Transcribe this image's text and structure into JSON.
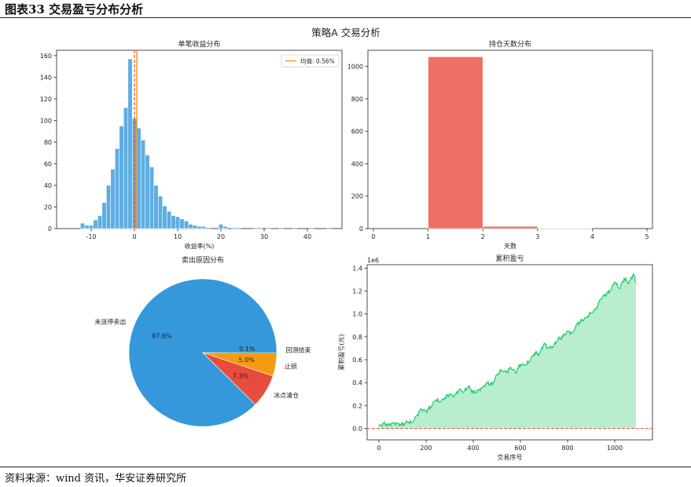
{
  "header": {
    "title": "图表33 交易盈亏分布分析"
  },
  "footer": {
    "source": "资料来源：wind 资讯，华安证券研究所"
  },
  "figure": {
    "suptitle": "策略A 交易分析"
  },
  "chart_data": [
    {
      "type": "bar",
      "title": "单笔收益分布",
      "xlabel": "收益率(%)",
      "ylabel": "",
      "xlim": [
        -18,
        48
      ],
      "ylim": [
        0,
        165
      ],
      "xticks": [
        -10,
        0,
        10,
        20,
        30,
        40
      ],
      "yticks": [
        0,
        20,
        40,
        60,
        80,
        100,
        120,
        140,
        160
      ],
      "bin_width": 1,
      "bins": [
        {
          "x": -12,
          "y": 5
        },
        {
          "x": -11,
          "y": 3
        },
        {
          "x": -10,
          "y": 3
        },
        {
          "x": -9,
          "y": 8
        },
        {
          "x": -8,
          "y": 12
        },
        {
          "x": -7,
          "y": 24
        },
        {
          "x": -6,
          "y": 40
        },
        {
          "x": -5,
          "y": 55
        },
        {
          "x": -4,
          "y": 74
        },
        {
          "x": -3,
          "y": 95
        },
        {
          "x": -2,
          "y": 112
        },
        {
          "x": -1,
          "y": 157
        },
        {
          "x": 0,
          "y": 102
        },
        {
          "x": 1,
          "y": 93
        },
        {
          "x": 2,
          "y": 82
        },
        {
          "x": 3,
          "y": 68
        },
        {
          "x": 4,
          "y": 57
        },
        {
          "x": 5,
          "y": 40
        },
        {
          "x": 6,
          "y": 30
        },
        {
          "x": 7,
          "y": 21
        },
        {
          "x": 8,
          "y": 16
        },
        {
          "x": 9,
          "y": 12
        },
        {
          "x": 10,
          "y": 11
        },
        {
          "x": 11,
          "y": 9
        },
        {
          "x": 12,
          "y": 7
        },
        {
          "x": 13,
          "y": 4
        },
        {
          "x": 14,
          "y": 3
        },
        {
          "x": 15,
          "y": 2
        },
        {
          "x": 16,
          "y": 2
        },
        {
          "x": 17,
          "y": 1
        },
        {
          "x": 20,
          "y": 4
        },
        {
          "x": 21,
          "y": 2
        },
        {
          "x": 23,
          "y": 1
        },
        {
          "x": 24,
          "y": 1
        },
        {
          "x": 28,
          "y": 1
        },
        {
          "x": 29,
          "y": 1
        },
        {
          "x": 31,
          "y": 1
        },
        {
          "x": 34,
          "y": 1
        },
        {
          "x": 37,
          "y": 1
        },
        {
          "x": 41,
          "y": 1
        },
        {
          "x": 45,
          "y": 1
        }
      ],
      "mean_line": 0.56,
      "zero_line": 0,
      "legend": [
        "均值: 0.56%"
      ],
      "legend_position": "top-right",
      "colors": {
        "bars": "#5DADE2",
        "mean": "#F39C12",
        "zero": "#E74C3C"
      }
    },
    {
      "type": "bar",
      "title": "持仓天数分布",
      "xlabel": "天数",
      "ylabel": "",
      "xlim": [
        -0.1,
        5.1
      ],
      "ylim": [
        0,
        1100
      ],
      "xticks": [
        0,
        1,
        2,
        3,
        4,
        5
      ],
      "yticks": [
        0,
        200,
        400,
        600,
        800,
        1000
      ],
      "bins": [
        {
          "x0": 1,
          "x1": 2,
          "y": 1060
        },
        {
          "x0": 2,
          "x1": 3,
          "y": 14
        },
        {
          "x0": 3,
          "x1": 4,
          "y": 3
        }
      ],
      "colors": {
        "bars": "#EC7063"
      }
    },
    {
      "type": "pie",
      "title": "卖出原因分布",
      "slices": [
        {
          "label": "未涨停卖出",
          "value": 87.6,
          "pct": "87.6%",
          "color": "#3498DB"
        },
        {
          "label": "冰点清仓",
          "value": 7.3,
          "pct": "7.3%",
          "color": "#E74C3C"
        },
        {
          "label": "止损",
          "value": 5.0,
          "pct": "5.0%",
          "color": "#F39C12"
        },
        {
          "label": "回测结束",
          "value": 0.1,
          "pct": "0.1%",
          "color": "#2ECC71"
        }
      ]
    },
    {
      "type": "area",
      "title": "累积盈亏",
      "xlabel": "交易序号",
      "ylabel": "累积盈亏(元)",
      "scale_label": "1e6",
      "xlim": [
        -50,
        1160
      ],
      "ylim": [
        -0.1,
        1.43
      ],
      "xticks": [
        0,
        200,
        400,
        600,
        800,
        1000
      ],
      "yticks": [
        0.0,
        0.2,
        0.4,
        0.6,
        0.8,
        1.0,
        1.2,
        1.4
      ],
      "ytick_labels": [
        "0.0",
        "0.2",
        "0.4",
        "0.6",
        "0.8",
        "1.0",
        "1.2",
        "1.4"
      ],
      "reference_line": 0,
      "colors": {
        "line": "#2ECC71",
        "fill": "#ABEBC6",
        "reference": "#E74C3C"
      },
      "x": [
        0,
        20,
        40,
        60,
        80,
        100,
        120,
        140,
        160,
        180,
        200,
        220,
        240,
        260,
        280,
        300,
        320,
        340,
        360,
        380,
        400,
        420,
        440,
        460,
        480,
        500,
        520,
        540,
        560,
        580,
        600,
        620,
        640,
        660,
        680,
        700,
        720,
        740,
        760,
        780,
        800,
        820,
        840,
        860,
        880,
        900,
        920,
        940,
        960,
        980,
        1000,
        1020,
        1040,
        1060,
        1080,
        1090
      ],
      "y": [
        0.02,
        0.04,
        0.03,
        0.05,
        0.04,
        0.03,
        0.06,
        0.05,
        0.11,
        0.17,
        0.15,
        0.19,
        0.25,
        0.23,
        0.27,
        0.3,
        0.28,
        0.34,
        0.32,
        0.37,
        0.31,
        0.33,
        0.36,
        0.4,
        0.38,
        0.47,
        0.51,
        0.49,
        0.53,
        0.49,
        0.56,
        0.55,
        0.59,
        0.66,
        0.65,
        0.74,
        0.7,
        0.72,
        0.78,
        0.8,
        0.85,
        0.83,
        0.91,
        0.94,
        0.97,
        1.01,
        1.04,
        1.13,
        1.17,
        1.2,
        1.28,
        1.22,
        1.31,
        1.27,
        1.35,
        1.27
      ]
    }
  ]
}
